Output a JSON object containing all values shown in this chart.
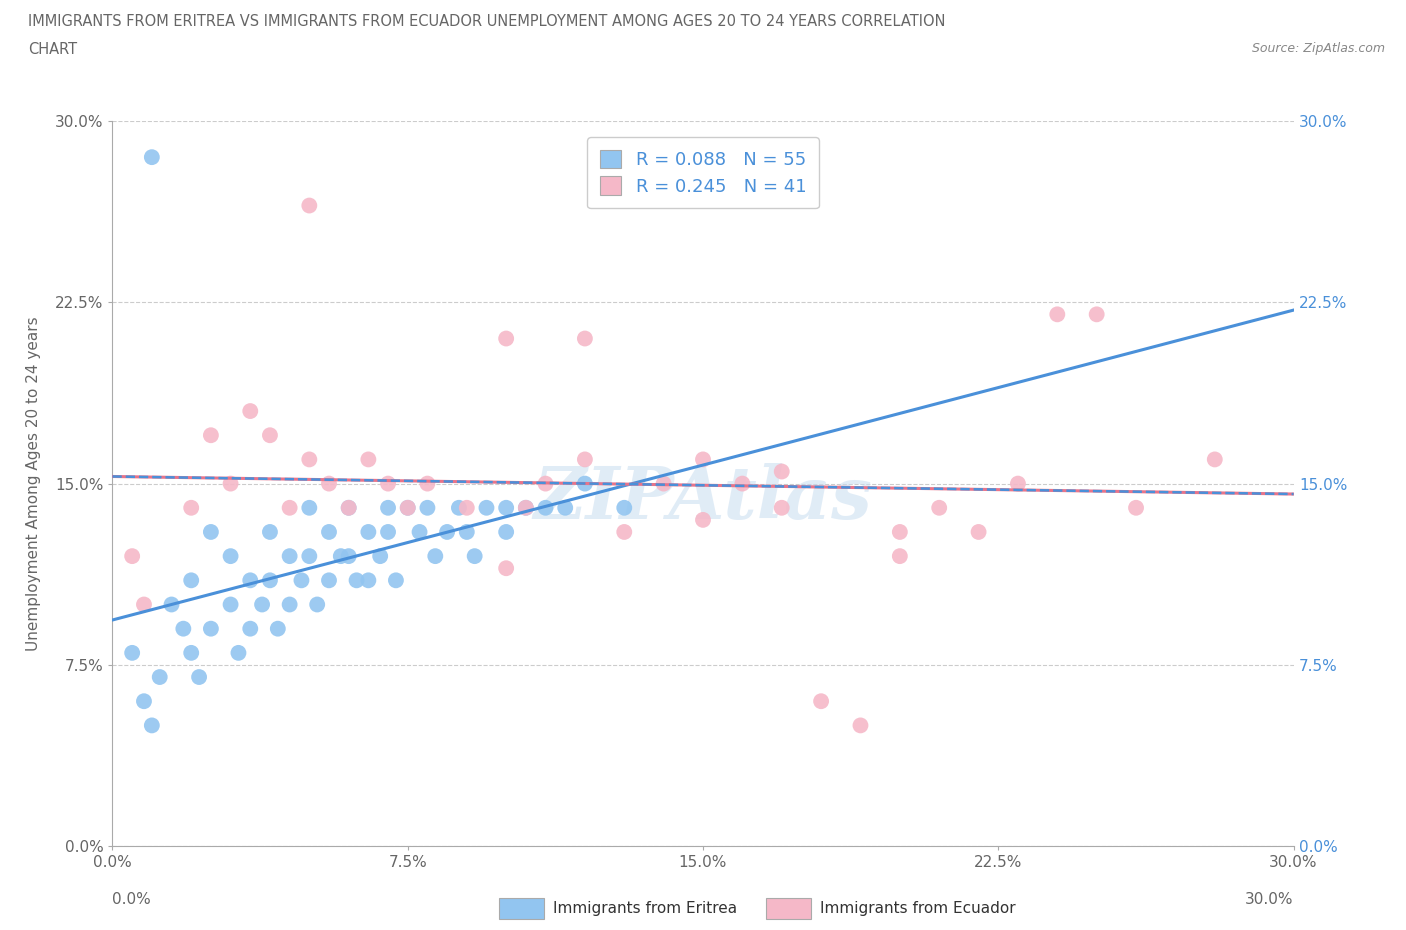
{
  "title_line1": "IMMIGRANTS FROM ERITREA VS IMMIGRANTS FROM ECUADOR UNEMPLOYMENT AMONG AGES 20 TO 24 YEARS CORRELATION",
  "title_line2": "CHART",
  "source_text": "Source: ZipAtlas.com",
  "ylabel": "Unemployment Among Ages 20 to 24 years",
  "xlim": [
    0.0,
    0.3
  ],
  "ylim": [
    0.0,
    0.3
  ],
  "tick_vals": [
    0.0,
    0.075,
    0.15,
    0.225,
    0.3
  ],
  "tick_labels": [
    "0.0%",
    "7.5%",
    "15.0%",
    "22.5%",
    "30.0%"
  ],
  "eritrea_color": "#92c5f0",
  "ecuador_color": "#f5b8c8",
  "eritrea_line_color": "#4a90d9",
  "ecuador_line_color": "#e8748a",
  "eritrea_R": 0.088,
  "eritrea_N": 55,
  "ecuador_R": 0.245,
  "ecuador_N": 41,
  "legend_label_eritrea": "Immigrants from Eritrea",
  "legend_label_ecuador": "Immigrants from Ecuador",
  "watermark": "ZIPAtlas",
  "eritrea_x": [
    0.005,
    0.008,
    0.01,
    0.012,
    0.015,
    0.018,
    0.02,
    0.02,
    0.022,
    0.025,
    0.025,
    0.03,
    0.03,
    0.032,
    0.035,
    0.035,
    0.038,
    0.04,
    0.04,
    0.042,
    0.045,
    0.045,
    0.048,
    0.05,
    0.05,
    0.052,
    0.055,
    0.055,
    0.058,
    0.06,
    0.06,
    0.062,
    0.065,
    0.065,
    0.068,
    0.07,
    0.07,
    0.072,
    0.075,
    0.078,
    0.08,
    0.082,
    0.085,
    0.088,
    0.09,
    0.092,
    0.095,
    0.1,
    0.1,
    0.105,
    0.11,
    0.115,
    0.12,
    0.13,
    0.01
  ],
  "eritrea_y": [
    0.08,
    0.06,
    0.05,
    0.07,
    0.1,
    0.09,
    0.11,
    0.08,
    0.07,
    0.13,
    0.09,
    0.12,
    0.1,
    0.08,
    0.11,
    0.09,
    0.1,
    0.13,
    0.11,
    0.09,
    0.12,
    0.1,
    0.11,
    0.14,
    0.12,
    0.1,
    0.13,
    0.11,
    0.12,
    0.14,
    0.12,
    0.11,
    0.13,
    0.11,
    0.12,
    0.14,
    0.13,
    0.11,
    0.14,
    0.13,
    0.14,
    0.12,
    0.13,
    0.14,
    0.13,
    0.12,
    0.14,
    0.14,
    0.13,
    0.14,
    0.14,
    0.14,
    0.15,
    0.14,
    0.285
  ],
  "ecuador_x": [
    0.005,
    0.008,
    0.02,
    0.025,
    0.03,
    0.035,
    0.04,
    0.045,
    0.05,
    0.055,
    0.06,
    0.065,
    0.07,
    0.075,
    0.08,
    0.09,
    0.1,
    0.105,
    0.11,
    0.12,
    0.13,
    0.14,
    0.15,
    0.16,
    0.17,
    0.18,
    0.19,
    0.2,
    0.21,
    0.22,
    0.23,
    0.25,
    0.26,
    0.28,
    0.05,
    0.12,
    0.17,
    0.2,
    0.24,
    0.1,
    0.15
  ],
  "ecuador_y": [
    0.12,
    0.1,
    0.14,
    0.17,
    0.15,
    0.18,
    0.17,
    0.14,
    0.16,
    0.15,
    0.14,
    0.16,
    0.15,
    0.14,
    0.15,
    0.14,
    0.21,
    0.14,
    0.15,
    0.16,
    0.13,
    0.15,
    0.16,
    0.15,
    0.14,
    0.06,
    0.05,
    0.13,
    0.14,
    0.13,
    0.15,
    0.22,
    0.14,
    0.16,
    0.265,
    0.21,
    0.155,
    0.12,
    0.22,
    0.115,
    0.135
  ]
}
